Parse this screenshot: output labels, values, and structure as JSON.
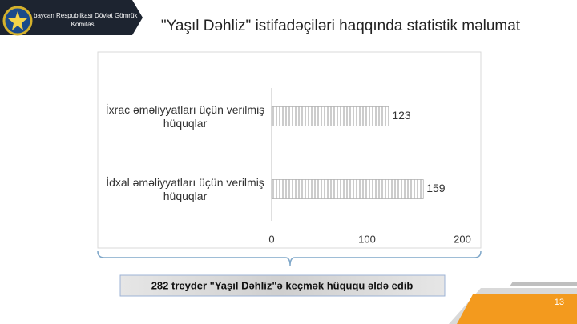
{
  "header": {
    "org_line1": "baycan Respublikası Dövlət Gömrük",
    "org_line2": "Komitəsi",
    "title": "\"Yaşıl Dəhliz\" istifadəçiləri haqqında statistik məlumat"
  },
  "chart_data": {
    "type": "bar",
    "orientation": "horizontal",
    "categories": [
      "İxrac əməliyyatları üçün verilmiş hüquqlar",
      "İdxal əməliyyatları üçün verilmiş hüquqlar"
    ],
    "values": [
      123,
      159
    ],
    "color": "#9a9a9a",
    "xlim": [
      0,
      200
    ],
    "xticks": [
      0,
      100,
      200
    ],
    "grid": false
  },
  "footer": {
    "summary": "282 treyder \"Yaşıl Dəhliz\"ə keçmək hüququ əldə edib",
    "page_number": "13"
  }
}
